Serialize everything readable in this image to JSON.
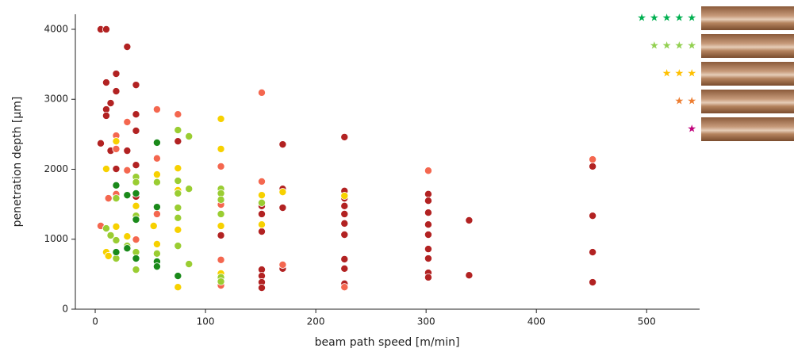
{
  "chart_data": {
    "type": "scatter",
    "x_label": "beam path speed [m/min]",
    "y_label": "penetration depth [µm]",
    "xlim": [
      -18,
      548
    ],
    "ylim": [
      0,
      4215
    ],
    "xticks": [
      0,
      100,
      200,
      300,
      400,
      500
    ],
    "yticks": [
      0,
      1000,
      2000,
      3000,
      4000
    ],
    "series": [
      {
        "color": "#b22222",
        "x": [
          5,
          10,
          10,
          29,
          19,
          19,
          14,
          10,
          10,
          37,
          37,
          37,
          5,
          29,
          14,
          19,
          37,
          75,
          170,
          226,
          170,
          170,
          151,
          151,
          151,
          114,
          151,
          151,
          151,
          151,
          170,
          226,
          226,
          226,
          226,
          226,
          226,
          226,
          226,
          226,
          302,
          302,
          302,
          302,
          302,
          302,
          302,
          302,
          302,
          339,
          339,
          451,
          451,
          451,
          451,
          37
        ],
        "values": [
          4000,
          4000,
          3240,
          3750,
          3365,
          3115,
          2945,
          2855,
          2765,
          3205,
          2785,
          2550,
          2370,
          2265,
          2265,
          2005,
          2060,
          2400,
          2355,
          2460,
          1720,
          1450,
          1475,
          1360,
          1110,
          1055,
          565,
          475,
          385,
          305,
          580,
          1690,
          1585,
          1475,
          1360,
          1225,
          1065,
          715,
          580,
          365,
          1645,
          1550,
          1380,
          1210,
          1065,
          860,
          725,
          520,
          455,
          1270,
          485,
          2040,
          1335,
          815,
          385,
          1610
        ]
      },
      {
        "color": "#f4674f",
        "x": [
          19,
          29,
          56,
          75,
          56,
          114,
          151,
          151,
          170,
          114,
          114,
          226,
          302,
          451,
          5,
          12,
          19,
          29,
          37,
          56,
          114,
          19
        ],
        "values": [
          2480,
          2675,
          2855,
          2785,
          2155,
          2040,
          3095,
          1825,
          635,
          705,
          340,
          315,
          1980,
          2140,
          1190,
          1585,
          2290,
          1985,
          995,
          1360,
          1495,
          1645
        ]
      },
      {
        "color": "#f7d100",
        "x": [
          10,
          19,
          37,
          56,
          75,
          114,
          114,
          56,
          75,
          75,
          114,
          151,
          151,
          170,
          19,
          10,
          12,
          29,
          53,
          114,
          75,
          226,
          37
        ],
        "values": [
          2005,
          2400,
          1835,
          1925,
          2015,
          2720,
          2290,
          930,
          1135,
          315,
          510,
          1630,
          1210,
          1675,
          1180,
          815,
          760,
          1040,
          1190,
          1190,
          1700,
          1620,
          1475
        ]
      },
      {
        "color": "#9acd32",
        "x": [
          75,
          85,
          85,
          37,
          56,
          75,
          75,
          75,
          75,
          114,
          114,
          114,
          114,
          114,
          114,
          85,
          75,
          56,
          37,
          37,
          37,
          29,
          19,
          10,
          14,
          19,
          19,
          37,
          151
        ],
        "values": [
          2560,
          2470,
          1720,
          1890,
          1815,
          1835,
          1655,
          1450,
          1305,
          1720,
          1655,
          1565,
          1360,
          455,
          395,
          645,
          905,
          795,
          815,
          565,
          1335,
          905,
          725,
          1155,
          1055,
          985,
          1585,
          1815,
          1520
        ]
      },
      {
        "color": "#1a8a1a",
        "x": [
          19,
          29,
          56,
          56,
          37,
          19,
          29,
          37,
          56,
          56,
          75,
          37
        ],
        "values": [
          1770,
          1630,
          2380,
          1460,
          1280,
          815,
          870,
          725,
          680,
          610,
          475,
          1655
        ]
      }
    ],
    "legend": [
      {
        "label": "★ ★ ★ ★ ★",
        "color": "#00b050"
      },
      {
        "label": "★ ★ ★ ★",
        "color": "#92d050"
      },
      {
        "label": "★ ★ ★",
        "color": "#ffc000"
      },
      {
        "label": "★ ★",
        "color": "#ed7d31"
      },
      {
        "label": "★",
        "color": "#c0007a"
      }
    ]
  }
}
